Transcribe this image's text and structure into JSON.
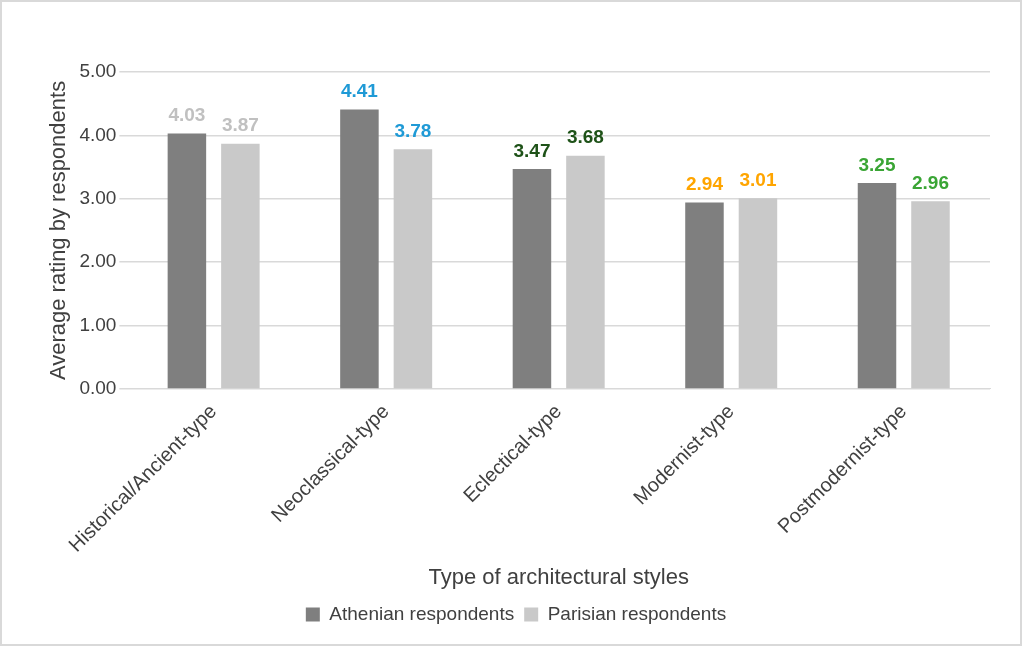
{
  "chart_data": {
    "type": "bar",
    "xlabel": "Type of architectural styles",
    "ylabel": "Average rating by respondents",
    "categories": [
      "Historical/Ancient-type",
      "Neoclassical-type",
      "Eclectical-type",
      "Modernist-type",
      "Postmodernist-type"
    ],
    "series": [
      {
        "name": "Athenian respondents",
        "color": "#7f7f7f",
        "values": [
          4.03,
          4.41,
          3.47,
          2.94,
          3.25
        ]
      },
      {
        "name": "Parisian respondents",
        "color": "#c9c9c9",
        "values": [
          3.87,
          3.78,
          3.68,
          3.01,
          2.96
        ]
      }
    ],
    "data_labels": true,
    "ylim": [
      0,
      5
    ],
    "yticks": [
      {
        "value": 0,
        "label": "0.00"
      },
      {
        "value": 1,
        "label": "1.00"
      },
      {
        "value": 2,
        "label": "2.00"
      },
      {
        "value": 3,
        "label": "3.00"
      },
      {
        "value": 4,
        "label": "4.00"
      },
      {
        "value": 5,
        "label": "5.00"
      }
    ],
    "grid": "y",
    "legend": "bottom"
  }
}
